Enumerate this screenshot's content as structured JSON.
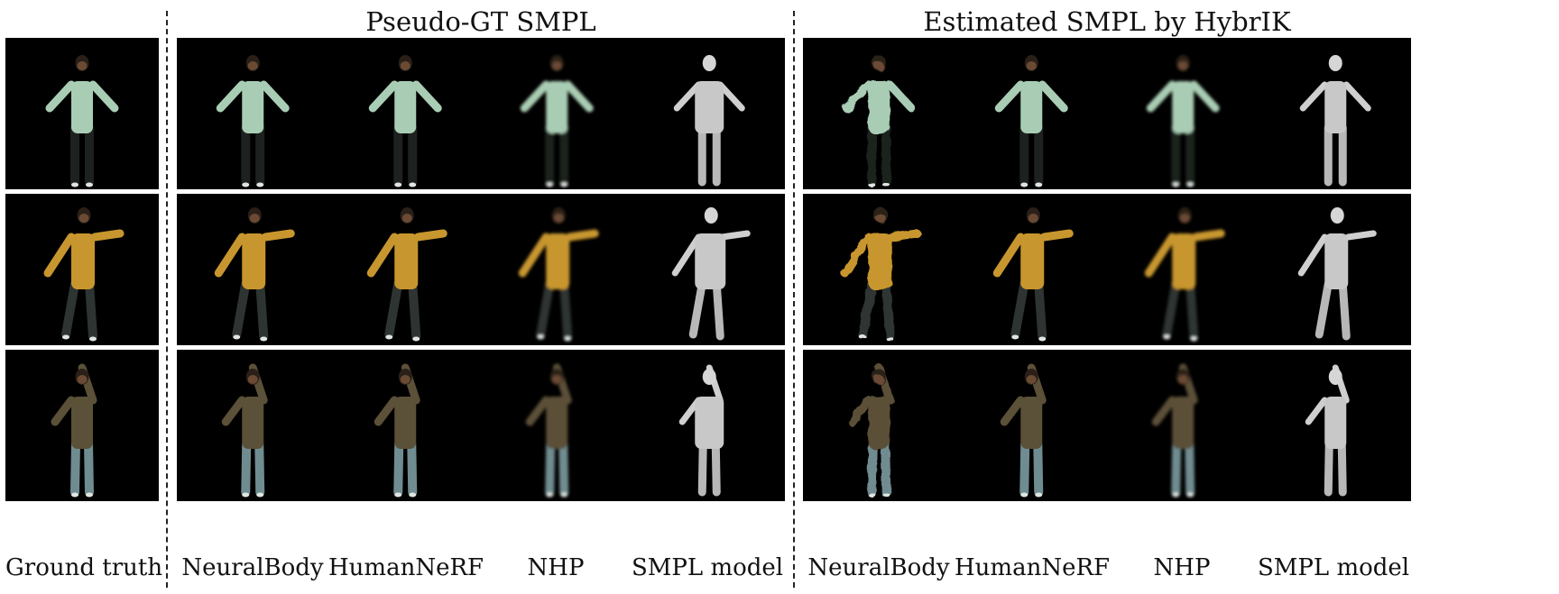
{
  "groups": [
    {
      "title": "Pseudo-GT SMPL"
    },
    {
      "title": "Estimated SMPL by HybrIK"
    }
  ],
  "ground_truth_label": "Ground truth",
  "group_columns": [
    [
      "NeuralBody",
      "HumanNeRF",
      "NHP",
      "SMPL model"
    ],
    [
      "NeuralBody",
      "HumanNeRF",
      "NHP",
      "SMPL model"
    ]
  ],
  "rows": [
    {
      "subject": "hoodie",
      "top_color": "#a9cdb4",
      "bottom_color": "#1d211f",
      "pose": "arms-out"
    },
    {
      "subject": "yellow-shirt",
      "top_color": "#c8962e",
      "bottom_color": "#2e3432",
      "pose": "dance-reach"
    },
    {
      "subject": "brown-shirt",
      "top_color": "#5b5038",
      "bottom_color": "#6f8c90",
      "pose": "arm-raised"
    }
  ]
}
